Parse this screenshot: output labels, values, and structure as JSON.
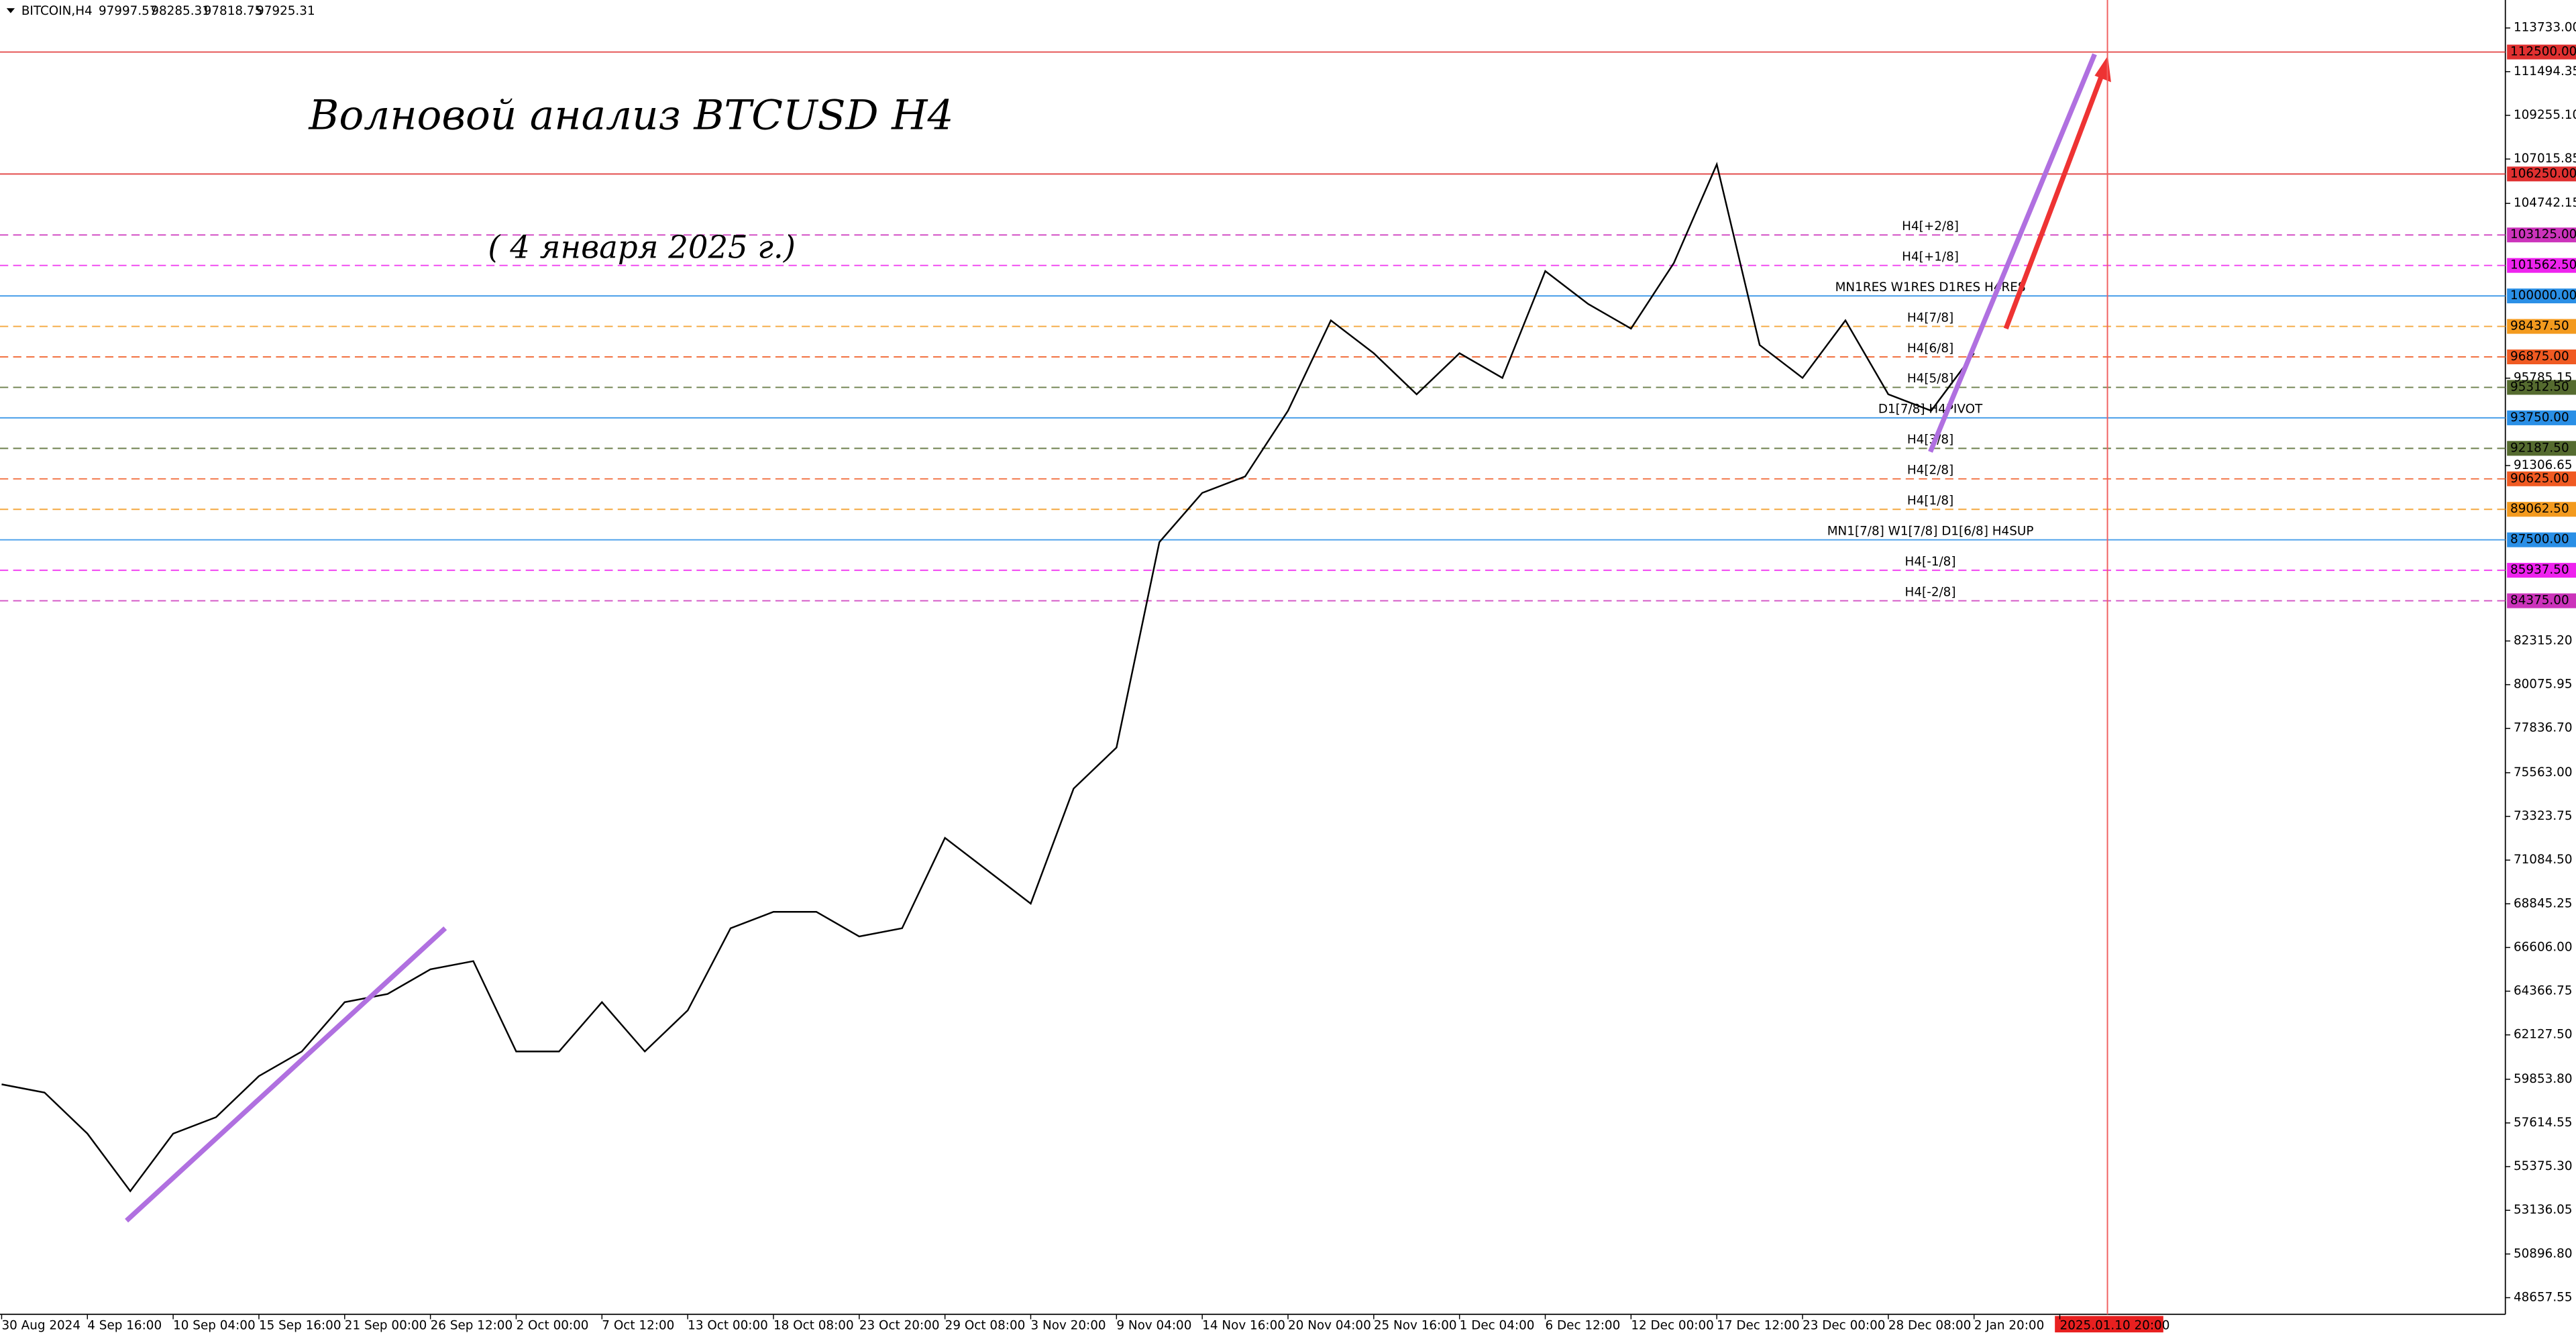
{
  "chart_data": {
    "type": "line",
    "symbol": "BITCOIN,H4",
    "ohlc": [
      97997.57,
      98285.31,
      97818.75,
      97925.31
    ],
    "title": "Волновой анализ BTCUSD H4",
    "subtitle": "( 4 января 2025 г.)",
    "categories": [
      "30 Aug 2024",
      null,
      "4 Sep 16:00",
      null,
      "10 Sep 04:00",
      null,
      "15 Sep 16:00",
      null,
      "21 Sep 00:00",
      null,
      "26 Sep 12:00",
      null,
      "2 Oct 00:00",
      null,
      "7 Oct 12:00",
      null,
      "13 Oct 00:00",
      null,
      "18 Oct 08:00",
      null,
      "23 Oct 20:00",
      null,
      "29 Oct 08:00",
      null,
      "3 Nov 20:00",
      null,
      "9 Nov 04:00",
      null,
      "14 Nov 16:00",
      null,
      "20 Nov 04:00",
      null,
      "25 Nov 16:00",
      null,
      "1 Dec 04:00",
      null,
      "6 Dec 12:00",
      null,
      "12 Dec 00:00",
      null,
      "17 Dec 12:00",
      null,
      "23 Dec 00:00",
      null,
      "28 Dec 08:00",
      null,
      "2 Jan 20:00",
      null,
      "2025.01.10 20:00"
    ],
    "series": [
      {
        "name": "BITCOIN",
        "color": "#000000",
        "values": [
          59593,
          59172,
          57067,
          54120,
          57067,
          57907,
          60014,
          61277,
          63803,
          64224,
          65487,
          65908,
          61277,
          61277,
          63803,
          61277,
          63382,
          67592,
          68434,
          68434,
          67171,
          67592,
          72223,
          70539,
          68855,
          74749,
          76854,
          87379,
          89905,
          90747,
          94115,
          98746,
          97062,
          94957,
          97062,
          95799,
          101272,
          99588,
          98325,
          101693,
          106745,
          97483,
          95799,
          98746,
          94957,
          94115,
          97062,
          null,
          null
        ]
      }
    ],
    "ylim": [
      47805,
      115165
    ],
    "yticks": [
      {
        "value": 113733,
        "label": "113733.00"
      },
      {
        "value": 111494.35,
        "label": "111494.35"
      },
      {
        "value": 109255.1,
        "label": "109255.10"
      },
      {
        "value": 107015.85,
        "label": "107015.85"
      },
      {
        "value": 104742.15,
        "label": "104742.15"
      },
      {
        "value": 95785.15,
        "label": "95785.15"
      },
      {
        "value": 91306.65,
        "label": "91306.65"
      },
      {
        "value": 82315.2,
        "label": "82315.20"
      },
      {
        "value": 80075.95,
        "label": "80075.95"
      },
      {
        "value": 77836.7,
        "label": "77836.70"
      },
      {
        "value": 75563,
        "label": "75563.00"
      },
      {
        "value": 73323.75,
        "label": "73323.75"
      },
      {
        "value": 71084.5,
        "label": "71084.50"
      },
      {
        "value": 68845.25,
        "label": "68845.25"
      },
      {
        "value": 66606,
        "label": "66606.00"
      },
      {
        "value": 64366.75,
        "label": "64366.75"
      },
      {
        "value": 62127.5,
        "label": "62127.50"
      },
      {
        "value": 59853.8,
        "label": "59853.80"
      },
      {
        "value": 57614.55,
        "label": "57614.55"
      },
      {
        "value": 55375.3,
        "label": "55375.30"
      },
      {
        "value": 53136.05,
        "label": "53136.05"
      },
      {
        "value": 50896.8,
        "label": "50896.80"
      },
      {
        "value": 48657.55,
        "label": "48657.55"
      }
    ],
    "levels": [
      {
        "value": 112500,
        "label": "112500.00",
        "color": "#e03030",
        "dash": false
      },
      {
        "value": 106250,
        "label": "106250.00",
        "color": "#e03030",
        "dash": false
      },
      {
        "value": 103125,
        "label": "103125.00",
        "name": "H4[+2/8]",
        "color": "#cc33bb",
        "dash": true
      },
      {
        "value": 101562.5,
        "label": "101562.50",
        "name": "H4[+1/8]",
        "color": "#ee22ee",
        "dash": true
      },
      {
        "value": 100000,
        "label": "100000.00",
        "name": "MN1RES W1RES D1RES H4RES",
        "color": "#2a8fe6",
        "dash": false
      },
      {
        "value": 98437.5,
        "label": "98437.50",
        "name": "H4[7/8]",
        "color": "#f39a1e",
        "dash": true
      },
      {
        "value": 96875,
        "label": "96875.00",
        "name": "H4[6/8]",
        "color": "#f05a22",
        "dash": true
      },
      {
        "value": 95312.5,
        "label": "95312.50",
        "name": "H4[5/8]",
        "color": "#556b2f",
        "dash": true
      },
      {
        "value": 93750,
        "label": "93750.00",
        "name": "D1[7/8] H4PIVOT",
        "color": "#2a8fe6",
        "dash": false
      },
      {
        "value": 92187.5,
        "label": "92187.50",
        "name": "H4[3/8]",
        "color": "#556b2f",
        "dash": true
      },
      {
        "value": 90625,
        "label": "90625.00",
        "name": "H4[2/8]",
        "color": "#f05a22",
        "dash": true
      },
      {
        "value": 89062.5,
        "label": "89062.50",
        "name": "H4[1/8]",
        "color": "#f39a1e",
        "dash": true
      },
      {
        "value": 87500,
        "label": "87500.00",
        "name": "MN1[7/8] W1[7/8] D1[6/8] H4SUP",
        "color": "#2a8fe6",
        "dash": false
      },
      {
        "value": 85937.5,
        "label": "85937.50",
        "name": "H4[-1/8]",
        "color": "#ee22ee",
        "dash": true
      },
      {
        "value": 84375,
        "label": "84375.00",
        "name": "H4[-2/8]",
        "color": "#cc33bb",
        "dash": true
      }
    ]
  }
}
